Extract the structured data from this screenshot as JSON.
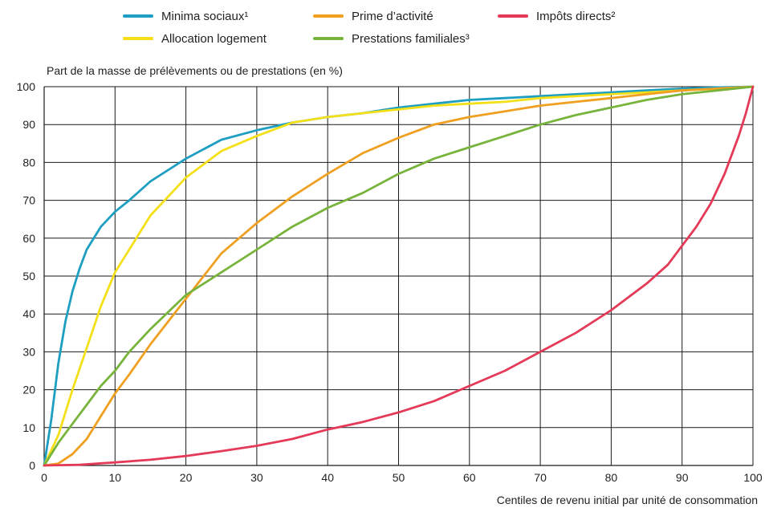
{
  "chart_data": {
    "type": "line",
    "ylabel": "Part de la masse de prélèvements ou de prestations (en %)",
    "xlabel": "Centiles de revenu initial par unité de consommation",
    "xlim": [
      0,
      100
    ],
    "ylim": [
      0,
      100
    ],
    "x_ticks": [
      0,
      10,
      20,
      30,
      40,
      50,
      60,
      70,
      80,
      90,
      100
    ],
    "y_ticks": [
      0,
      10,
      20,
      30,
      40,
      50,
      60,
      70,
      80,
      90,
      100
    ],
    "grid": true,
    "legend_position": "top",
    "series": [
      {
        "name": "Minima sociaux¹",
        "color": "#1E9FC2",
        "x": [
          0,
          1,
          2,
          3,
          4,
          5,
          6,
          8,
          10,
          12,
          15,
          20,
          25,
          30,
          35,
          40,
          45,
          50,
          55,
          60,
          65,
          70,
          75,
          80,
          85,
          90,
          95,
          100
        ],
        "y": [
          0,
          12,
          27,
          38,
          46,
          52,
          57,
          63,
          67,
          70,
          75,
          81,
          86,
          88.5,
          90.5,
          92,
          93,
          94.5,
          95.5,
          96.5,
          97,
          97.5,
          98,
          98.5,
          99,
          99.5,
          99.8,
          100
        ]
      },
      {
        "name": "Allocation logement",
        "color": "#F4E019",
        "x": [
          0,
          2,
          4,
          6,
          8,
          10,
          12,
          15,
          20,
          25,
          30,
          35,
          40,
          45,
          50,
          55,
          60,
          65,
          70,
          75,
          80,
          85,
          90,
          95,
          100
        ],
        "y": [
          0,
          8,
          20,
          31,
          42,
          51,
          57,
          66,
          76,
          83,
          87,
          90.5,
          92,
          93,
          94,
          95,
          95.5,
          96,
          97,
          97.5,
          98,
          98.5,
          99,
          99.5,
          100
        ]
      },
      {
        "name": "Prime d’activité",
        "color": "#F0A020",
        "x": [
          0,
          2,
          4,
          6,
          8,
          10,
          12,
          15,
          20,
          25,
          30,
          35,
          40,
          45,
          50,
          55,
          60,
          65,
          70,
          75,
          80,
          85,
          90,
          95,
          100
        ],
        "y": [
          0,
          0.5,
          3,
          7,
          13,
          19,
          24,
          32,
          44,
          56,
          64,
          71,
          77,
          82.5,
          86.5,
          90,
          92,
          93.5,
          95,
          96,
          97,
          98,
          99,
          99.5,
          100
        ]
      },
      {
        "name": "Prestations familiales³",
        "color": "#78B43C",
        "x": [
          0,
          2,
          4,
          6,
          8,
          10,
          12,
          15,
          20,
          25,
          30,
          35,
          40,
          45,
          50,
          55,
          60,
          65,
          70,
          75,
          80,
          85,
          90,
          95,
          100
        ],
        "y": [
          0,
          6,
          11,
          16,
          21,
          25,
          30,
          36,
          45,
          51,
          57,
          63,
          68,
          72,
          77,
          81,
          84,
          87,
          90,
          92.5,
          94.5,
          96.5,
          98,
          99,
          100
        ]
      },
      {
        "name": "Impôts directs²",
        "color": "#E53A57",
        "x": [
          0,
          5,
          10,
          15,
          20,
          25,
          30,
          35,
          40,
          45,
          50,
          55,
          60,
          65,
          70,
          75,
          80,
          85,
          88,
          90,
          92,
          94,
          96,
          97,
          98,
          99,
          100
        ],
        "y": [
          0,
          0.2,
          0.8,
          1.5,
          2.5,
          3.8,
          5.2,
          7,
          9.5,
          11.5,
          14,
          17,
          21,
          25,
          30,
          35,
          41,
          48,
          53,
          58,
          63,
          69,
          77,
          82,
          87,
          93,
          100
        ]
      }
    ]
  }
}
